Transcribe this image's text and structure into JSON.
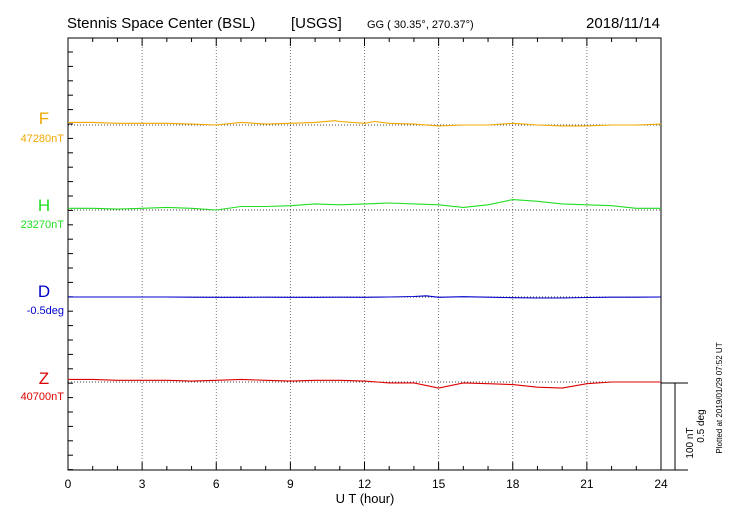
{
  "header": {
    "station": "Stennis Space Center (BSL)",
    "source": "[USGS]",
    "coords": "GG ( 30.35°, 270.37°)",
    "date": "2018/11/14"
  },
  "plotted_note": "Plotted at 2019/01/29 07:52 UT",
  "scale_bar": {
    "nt": "100 nT",
    "deg": "0.5 deg"
  },
  "chart_data": {
    "type": "line",
    "title": "Stennis Space Center (BSL) [USGS]",
    "xlabel": "U T (hour)",
    "ylabel": "",
    "xlim": [
      0,
      24
    ],
    "xticks": [
      0,
      3,
      6,
      9,
      12,
      15,
      18,
      21,
      24
    ],
    "grid": true,
    "series": [
      {
        "name": "F",
        "baseline_label": "47280nT",
        "baseline": 47280,
        "unit": "nT",
        "color": "#f0a800",
        "x": [
          0,
          1,
          2,
          3,
          4,
          5,
          6,
          7,
          8,
          9,
          10,
          10.8,
          11,
          12,
          12.4,
          13,
          14,
          15,
          16,
          17,
          18,
          19,
          20,
          21,
          22,
          23,
          24
        ],
        "values": [
          47283,
          47283,
          47282,
          47282,
          47282,
          47281,
          47280,
          47283,
          47281,
          47282,
          47283,
          47285,
          47284,
          47282,
          47284,
          47282,
          47281,
          47279,
          47280,
          47280,
          47282,
          47280,
          47279,
          47279,
          47280,
          47280,
          47281
        ]
      },
      {
        "name": "H",
        "baseline_label": "23270nT",
        "baseline": 23270,
        "unit": "nT",
        "color": "#22dd22",
        "x": [
          0,
          1,
          2,
          3,
          4,
          5,
          6,
          7,
          8,
          9,
          10,
          11,
          12,
          13,
          14,
          15,
          16,
          17,
          18,
          19,
          20,
          21,
          22,
          23,
          24
        ],
        "values": [
          23272,
          23272,
          23271,
          23272,
          23273,
          23272,
          23270,
          23274,
          23274,
          23275,
          23277,
          23276,
          23277,
          23278,
          23277,
          23276,
          23273,
          23276,
          23282,
          23280,
          23277,
          23276,
          23275,
          23272,
          23272
        ]
      },
      {
        "name": "D",
        "baseline_label": "-0.5deg",
        "baseline": -0.5,
        "unit": "deg",
        "color": "#0000cc",
        "x": [
          0,
          1,
          2,
          3,
          4,
          5,
          6,
          7,
          8,
          9,
          10,
          11,
          12,
          13,
          14,
          14.5,
          15,
          16,
          17,
          18,
          19,
          20,
          21,
          22,
          23,
          24
        ],
        "values": [
          -0.5,
          -0.5,
          -0.5,
          -0.5,
          -0.5,
          -0.501,
          -0.502,
          -0.502,
          -0.501,
          -0.502,
          -0.502,
          -0.501,
          -0.502,
          -0.5,
          -0.497,
          -0.493,
          -0.502,
          -0.498,
          -0.501,
          -0.504,
          -0.506,
          -0.506,
          -0.503,
          -0.501,
          -0.501,
          -0.5
        ]
      },
      {
        "name": "Z",
        "baseline_label": "40700nT",
        "baseline": 40700,
        "unit": "nT",
        "color": "#dd0000",
        "x": [
          0,
          1,
          2,
          3,
          4,
          5,
          6,
          7,
          8,
          9,
          10,
          11,
          12,
          13,
          14,
          15,
          16,
          17,
          18,
          19,
          20,
          21,
          22,
          23,
          24
        ],
        "values": [
          40703,
          40703,
          40702,
          40702,
          40702,
          40701,
          40702,
          40703,
          40702,
          40701,
          40702,
          40702,
          40701,
          40699,
          40699,
          40693,
          40699,
          40698,
          40697,
          40694,
          40693,
          40698,
          40700,
          40700,
          40700
        ]
      }
    ]
  }
}
